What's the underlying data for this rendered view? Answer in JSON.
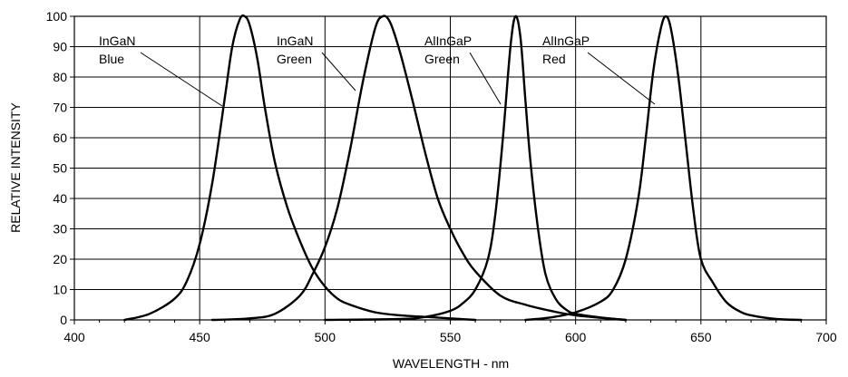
{
  "chart_data": {
    "type": "line",
    "title": "",
    "xlabel": "WAVELENGTH - nm",
    "ylabel": "RELATIVE INTENSITY",
    "xlim": [
      400,
      700
    ],
    "ylim": [
      0,
      100
    ],
    "x_ticks": [
      "400",
      "450",
      "500",
      "550",
      "600",
      "650",
      "700"
    ],
    "y_ticks": [
      "0",
      "10",
      "20",
      "30",
      "40",
      "50",
      "60",
      "70",
      "80",
      "90",
      "100"
    ],
    "grid": true,
    "line_color": "#000000",
    "series": [
      {
        "name": "InGaN Blue",
        "label_lines": [
          "InGaN",
          "Blue"
        ],
        "x": [
          420,
          430,
          440,
          445,
          450,
          455,
          460,
          463,
          466,
          468,
          470,
          473,
          476,
          480,
          485,
          490,
          495,
          500,
          505,
          510,
          520,
          530,
          540,
          550,
          560
        ],
        "y": [
          0,
          2,
          7,
          13,
          25,
          45,
          73,
          90,
          99,
          100,
          97,
          86,
          70,
          52,
          37,
          26,
          17,
          11,
          7,
          5,
          2.5,
          1.5,
          1,
          0.5,
          0
        ]
      },
      {
        "name": "InGaN Green",
        "label_lines": [
          "InGaN",
          "Green"
        ],
        "x": [
          455,
          470,
          480,
          490,
          495,
          500,
          505,
          510,
          515,
          520,
          523,
          526,
          530,
          535,
          540,
          545,
          550,
          555,
          560,
          570,
          580,
          590,
          600,
          620
        ],
        "y": [
          0,
          0.5,
          2,
          8,
          15,
          24,
          37,
          56,
          78,
          96,
          100,
          98,
          88,
          72,
          55,
          40,
          30,
          22,
          16,
          8,
          5,
          3,
          1.5,
          0
        ]
      },
      {
        "name": "AlInGaP Green",
        "label_lines": [
          "AlInGaP",
          "Green"
        ],
        "x": [
          500,
          530,
          540,
          550,
          555,
          560,
          565,
          568,
          571,
          574,
          576,
          578,
          580,
          582,
          585,
          588,
          592,
          596,
          600,
          610,
          620
        ],
        "y": [
          0,
          0.3,
          1,
          3,
          5.5,
          10,
          20,
          35,
          60,
          90,
          100,
          93,
          72,
          52,
          30,
          15,
          7,
          3.5,
          2,
          0.8,
          0
        ]
      },
      {
        "name": "AlInGaP Red",
        "label_lines": [
          "AlInGaP",
          "Red"
        ],
        "x": [
          580,
          590,
          600,
          610,
          615,
          620,
          625,
          628,
          631,
          634,
          636,
          638,
          641,
          644,
          647,
          650,
          655,
          660,
          665,
          670,
          680,
          690
        ],
        "y": [
          0,
          0.8,
          2.5,
          6,
          10,
          20,
          40,
          60,
          82,
          96,
          100,
          96,
          80,
          58,
          36,
          20,
          12,
          6,
          3,
          1.5,
          0.3,
          0
        ]
      }
    ],
    "annotations": [
      {
        "lines": [
          "InGaN",
          "Blue"
        ]
      },
      {
        "lines": [
          "InGaN",
          "Green"
        ]
      },
      {
        "lines": [
          "AlInGaP",
          "Green"
        ]
      },
      {
        "lines": [
          "AlInGaP",
          "Red"
        ]
      }
    ]
  }
}
